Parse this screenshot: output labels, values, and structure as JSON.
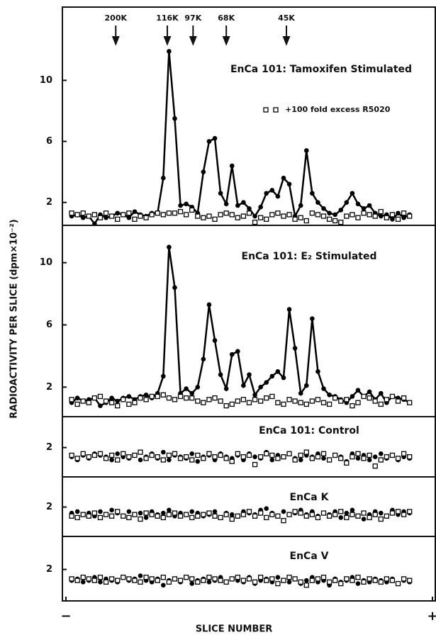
{
  "ylabel": "RADIOACTIVITY PER SLICE (dpm×10⁻²)",
  "xlabel": "SLICE NUMBER",
  "chart_data": [
    {
      "type": "scatter",
      "title": "EnCa 101: Tamoxifen Stimulated",
      "markers": [
        {
          "label": "200K",
          "x": 8.7
        },
        {
          "label": "116K",
          "x": 17.7
        },
        {
          "label": "97K",
          "x": 22.2
        },
        {
          "label": "68K",
          "x": 28
        },
        {
          "label": "45K",
          "x": 38.5
        }
      ],
      "xlim": [
        0,
        64
      ],
      "ylim": [
        0.5,
        14.8
      ],
      "yticks": [
        2,
        6,
        10
      ],
      "x": [
        1,
        2,
        3,
        4,
        5,
        6,
        7,
        8,
        9,
        10,
        11,
        12,
        13,
        14,
        15,
        16,
        17,
        18,
        19,
        20,
        21,
        22,
        23,
        24,
        25,
        26,
        27,
        28,
        29,
        30,
        31,
        32,
        33,
        34,
        35,
        36,
        37,
        38,
        39,
        40,
        41,
        42,
        43,
        44,
        45,
        46,
        47,
        48,
        49,
        50,
        51,
        52,
        53,
        54,
        55,
        56,
        57,
        58,
        59,
        60
      ],
      "series": [
        {
          "color": "#000000",
          "marker": "filled-circle",
          "line": true,
          "values": [
            1.1,
            1.2,
            1.0,
            1.1,
            0.6,
            1.2,
            1.0,
            1.1,
            1.3,
            1.2,
            1.0,
            1.4,
            1.2,
            1.1,
            1.3,
            1.3,
            3.6,
            11.9,
            7.5,
            1.8,
            1.9,
            1.7,
            1.3,
            4.0,
            6.0,
            6.2,
            2.6,
            1.9,
            4.4,
            1.8,
            2.0,
            1.6,
            1.1,
            1.7,
            2.6,
            2.8,
            2.4,
            3.6,
            3.2,
            1.1,
            1.8,
            5.4,
            2.6,
            2.0,
            1.6,
            1.3,
            1.2,
            1.5,
            2.0,
            2.6,
            1.9,
            1.6,
            1.8,
            1.3,
            1.1,
            1.2,
            0.9,
            1.3,
            1.0,
            1.2
          ]
        },
        {
          "name": "+100 fold excess R5020",
          "color": "#000000",
          "marker": "open-square",
          "values": [
            1.3,
            1.2,
            1.3,
            1.1,
            1.2,
            1.0,
            1.3,
            1.1,
            0.9,
            1.2,
            1.3,
            0.9,
            1.1,
            1.0,
            1.2,
            1.3,
            1.2,
            1.3,
            1.3,
            1.4,
            1.2,
            1.5,
            1.1,
            1.0,
            1.1,
            0.9,
            1.2,
            1.3,
            1.2,
            1.0,
            1.1,
            1.3,
            0.7,
            1.0,
            0.9,
            1.2,
            1.3,
            1.1,
            1.2,
            0.9,
            1.0,
            0.8,
            1.3,
            1.2,
            1.1,
            0.9,
            0.8,
            0.7,
            1.1,
            1.2,
            1.0,
            1.3,
            1.2,
            1.1,
            1.4,
            1.0,
            1.2,
            0.9,
            1.3,
            1.1
          ]
        }
      ]
    },
    {
      "type": "scatter",
      "title": "EnCa 101: E₂ Stimulated",
      "xlim": [
        0,
        64
      ],
      "ylim": [
        0.1,
        12.4
      ],
      "yticks": [
        2,
        6,
        10
      ],
      "x": [
        1,
        2,
        3,
        4,
        5,
        6,
        7,
        8,
        9,
        10,
        11,
        12,
        13,
        14,
        15,
        16,
        17,
        18,
        19,
        20,
        21,
        22,
        23,
        24,
        25,
        26,
        27,
        28,
        29,
        30,
        31,
        32,
        33,
        34,
        35,
        36,
        37,
        38,
        39,
        40,
        41,
        42,
        43,
        44,
        45,
        46,
        47,
        48,
        49,
        50,
        51,
        52,
        53,
        54,
        55,
        56,
        57,
        58,
        59,
        60
      ],
      "series": [
        {
          "color": "#000000",
          "marker": "filled-circle",
          "line": true,
          "values": [
            1.0,
            1.3,
            1.1,
            1.2,
            1.3,
            0.8,
            1.0,
            1.3,
            1.1,
            1.3,
            1.4,
            1.2,
            1.4,
            1.5,
            1.3,
            1.6,
            2.7,
            11.0,
            8.4,
            1.6,
            1.9,
            1.6,
            2.0,
            3.8,
            7.3,
            5.0,
            2.8,
            1.9,
            4.1,
            4.3,
            2.1,
            2.8,
            1.5,
            2.0,
            2.3,
            2.7,
            3.0,
            2.6,
            7.0,
            4.5,
            1.6,
            2.1,
            6.4,
            3.0,
            1.9,
            1.5,
            1.4,
            1.2,
            1.0,
            1.4,
            1.8,
            1.4,
            1.7,
            1.2,
            1.6,
            1.0,
            1.4,
            1.3,
            1.2,
            1.0
          ]
        },
        {
          "color": "#000000",
          "marker": "open-square",
          "values": [
            1.2,
            0.9,
            1.1,
            1.0,
            1.3,
            1.4,
            1.1,
            1.0,
            0.8,
            1.2,
            0.9,
            1.0,
            1.3,
            1.2,
            1.4,
            1.4,
            1.5,
            1.3,
            1.2,
            1.4,
            1.3,
            1.3,
            1.1,
            1.0,
            1.2,
            1.3,
            1.1,
            0.8,
            0.9,
            1.1,
            1.2,
            1.0,
            1.2,
            1.1,
            1.3,
            1.4,
            1.0,
            0.9,
            1.2,
            1.1,
            1.0,
            0.9,
            1.1,
            1.2,
            1.0,
            0.9,
            1.3,
            1.1,
            1.2,
            0.8,
            1.0,
            1.4,
            1.3,
            1.1,
            0.9,
            1.2,
            1.4,
            1.1,
            1.3,
            1.0
          ]
        }
      ]
    },
    {
      "type": "scatter",
      "title": "EnCa 101: Control",
      "xlim": [
        0,
        64
      ],
      "ylim": [
        0.1,
        4.0
      ],
      "yticks": [
        2
      ],
      "x": [
        1,
        2,
        3,
        4,
        5,
        6,
        7,
        8,
        9,
        10,
        11,
        12,
        13,
        14,
        15,
        16,
        17,
        18,
        19,
        20,
        21,
        22,
        23,
        24,
        25,
        26,
        27,
        28,
        29,
        30,
        31,
        32,
        33,
        34,
        35,
        36,
        37,
        38,
        39,
        40,
        41,
        42,
        43,
        44,
        45,
        46,
        47,
        48,
        49,
        50,
        51,
        52,
        53,
        54,
        55,
        56,
        57,
        58,
        59,
        60
      ],
      "series": [
        {
          "color": "#000000",
          "marker": "filled-circle",
          "values": [
            1.4,
            1.2,
            1.5,
            1.3,
            1.6,
            1.5,
            1.4,
            1.2,
            1.6,
            1.4,
            1.3,
            1.5,
            1.2,
            1.4,
            1.6,
            1.3,
            1.7,
            1.2,
            1.5,
            1.4,
            1.3,
            1.6,
            1.1,
            1.4,
            1.5,
            1.2,
            1.6,
            1.4,
            1.3,
            1.5,
            1.2,
            1.6,
            1.4,
            1.3,
            1.7,
            1.2,
            1.5,
            1.4,
            1.6,
            1.3,
            1.2,
            1.5,
            1.4,
            1.6,
            1.3,
            1.2,
            1.5,
            1.4,
            1.1,
            1.6,
            1.3,
            1.5,
            1.2,
            1.4,
            1.6,
            1.3,
            1.5,
            1.2,
            1.4,
            1.3
          ]
        },
        {
          "color": "#000000",
          "marker": "open-square",
          "values": [
            1.5,
            1.3,
            1.6,
            1.4,
            1.5,
            1.6,
            1.3,
            1.5,
            1.2,
            1.6,
            1.4,
            1.5,
            1.7,
            1.3,
            1.5,
            1.4,
            1.2,
            1.5,
            1.6,
            1.3,
            1.4,
            1.2,
            1.5,
            1.3,
            1.6,
            1.4,
            1.5,
            1.3,
            1.1,
            1.6,
            1.4,
            1.5,
            0.9,
            1.4,
            1.6,
            1.5,
            1.3,
            1.4,
            1.6,
            1.2,
            1.5,
            1.7,
            1.3,
            1.4,
            1.6,
            1.2,
            1.5,
            1.3,
            1.0,
            1.4,
            1.6,
            1.3,
            1.5,
            0.8,
            1.2,
            1.4,
            1.5,
            1.3,
            1.6,
            1.4
          ]
        }
      ]
    },
    {
      "type": "scatter",
      "title": "EnCa K",
      "xlim": [
        0,
        64
      ],
      "ylim": [
        0.05,
        4.0
      ],
      "yticks": [
        2
      ],
      "x": [
        1,
        2,
        3,
        4,
        5,
        6,
        7,
        8,
        9,
        10,
        11,
        12,
        13,
        14,
        15,
        16,
        17,
        18,
        19,
        20,
        21,
        22,
        23,
        24,
        25,
        26,
        27,
        28,
        29,
        30,
        31,
        32,
        33,
        34,
        35,
        36,
        37,
        38,
        39,
        40,
        41,
        42,
        43,
        44,
        45,
        46,
        47,
        48,
        49,
        50,
        51,
        52,
        53,
        54,
        55,
        56,
        57,
        58,
        59,
        60
      ],
      "series": [
        {
          "color": "#000000",
          "marker": "filled-circle",
          "values": [
            1.6,
            1.7,
            1.5,
            1.6,
            1.4,
            1.7,
            1.5,
            1.8,
            1.6,
            1.4,
            1.7,
            1.5,
            1.6,
            1.3,
            1.7,
            1.5,
            1.6,
            1.8,
            1.4,
            1.6,
            1.5,
            1.7,
            1.6,
            1.4,
            1.5,
            1.7,
            1.3,
            1.6,
            1.5,
            1.4,
            1.7,
            1.6,
            1.5,
            1.8,
            1.9,
            1.6,
            1.4,
            1.7,
            1.5,
            1.6,
            1.8,
            1.5,
            1.7,
            1.4,
            1.6,
            1.5,
            1.7,
            1.3,
            1.6,
            1.8,
            1.4,
            1.2,
            1.5,
            1.7,
            1.6,
            1.4,
            1.8,
            1.5,
            1.7,
            1.6
          ]
        },
        {
          "color": "#000000",
          "marker": "open-square",
          "values": [
            1.4,
            1.3,
            1.5,
            1.4,
            1.6,
            1.3,
            1.5,
            1.4,
            1.7,
            1.4,
            1.3,
            1.5,
            1.2,
            1.6,
            1.5,
            1.4,
            1.3,
            1.5,
            1.6,
            1.4,
            1.5,
            1.3,
            1.4,
            1.5,
            1.6,
            1.4,
            1.3,
            1.5,
            1.2,
            1.4,
            1.5,
            1.7,
            1.4,
            1.6,
            1.3,
            1.5,
            1.4,
            1.1,
            1.5,
            1.7,
            1.6,
            1.4,
            1.5,
            1.3,
            1.6,
            1.4,
            1.5,
            1.7,
            1.3,
            1.5,
            1.4,
            1.6,
            1.3,
            1.5,
            1.2,
            1.4,
            1.6,
            1.7,
            1.5,
            1.7
          ]
        }
      ]
    },
    {
      "type": "scatter",
      "title": "EnCa V",
      "xlim": [
        0,
        64
      ],
      "ylim": [
        0.0,
        4.1
      ],
      "yticks": [
        2
      ],
      "xticks": [
        {
          "value": 0,
          "label": "−"
        },
        {
          "value": 64,
          "label": "+"
        }
      ],
      "x": [
        1,
        2,
        3,
        4,
        5,
        6,
        7,
        8,
        9,
        10,
        11,
        12,
        13,
        14,
        15,
        16,
        17,
        18,
        19,
        20,
        21,
        22,
        23,
        24,
        25,
        26,
        27,
        28,
        29,
        30,
        31,
        32,
        33,
        34,
        35,
        36,
        37,
        38,
        39,
        40,
        41,
        42,
        43,
        44,
        45,
        46,
        47,
        48,
        49,
        50,
        51,
        52,
        53,
        54,
        55,
        56,
        57,
        58,
        59,
        60
      ],
      "series": [
        {
          "color": "#000000",
          "marker": "filled-circle",
          "values": [
            1.3,
            1.4,
            1.2,
            1.3,
            1.5,
            1.2,
            1.4,
            1.3,
            1.2,
            1.5,
            1.3,
            1.4,
            1.6,
            1.3,
            1.2,
            1.4,
            1.0,
            1.3,
            1.4,
            1.2,
            1.5,
            1.1,
            1.3,
            1.4,
            1.2,
            1.3,
            1.5,
            1.2,
            1.4,
            1.3,
            1.2,
            1.5,
            1.1,
            1.3,
            1.4,
            1.2,
            1.5,
            1.3,
            1.2,
            1.4,
            1.1,
            1.3,
            1.5,
            1.2,
            1.3,
            1.0,
            1.4,
            1.2,
            1.3,
            1.5,
            1.1,
            1.3,
            1.2,
            1.4,
            1.3,
            1.2,
            1.4,
            1.1,
            1.3,
            1.2
          ]
        },
        {
          "color": "#000000",
          "marker": "open-square",
          "values": [
            1.4,
            1.3,
            1.5,
            1.4,
            1.3,
            1.5,
            1.2,
            1.4,
            1.3,
            1.5,
            1.4,
            1.3,
            1.2,
            1.5,
            1.4,
            1.3,
            1.5,
            1.2,
            1.4,
            1.3,
            1.5,
            1.4,
            1.2,
            1.3,
            1.5,
            1.4,
            1.3,
            1.2,
            1.4,
            1.5,
            1.3,
            1.4,
            1.2,
            1.5,
            1.3,
            1.4,
            1.1,
            1.3,
            1.5,
            1.4,
            1.2,
            1.0,
            1.3,
            1.4,
            1.5,
            1.2,
            1.3,
            1.1,
            1.4,
            1.3,
            1.5,
            1.2,
            1.4,
            1.3,
            1.2,
            1.4,
            1.3,
            1.1,
            1.4,
            1.3
          ]
        }
      ]
    }
  ]
}
